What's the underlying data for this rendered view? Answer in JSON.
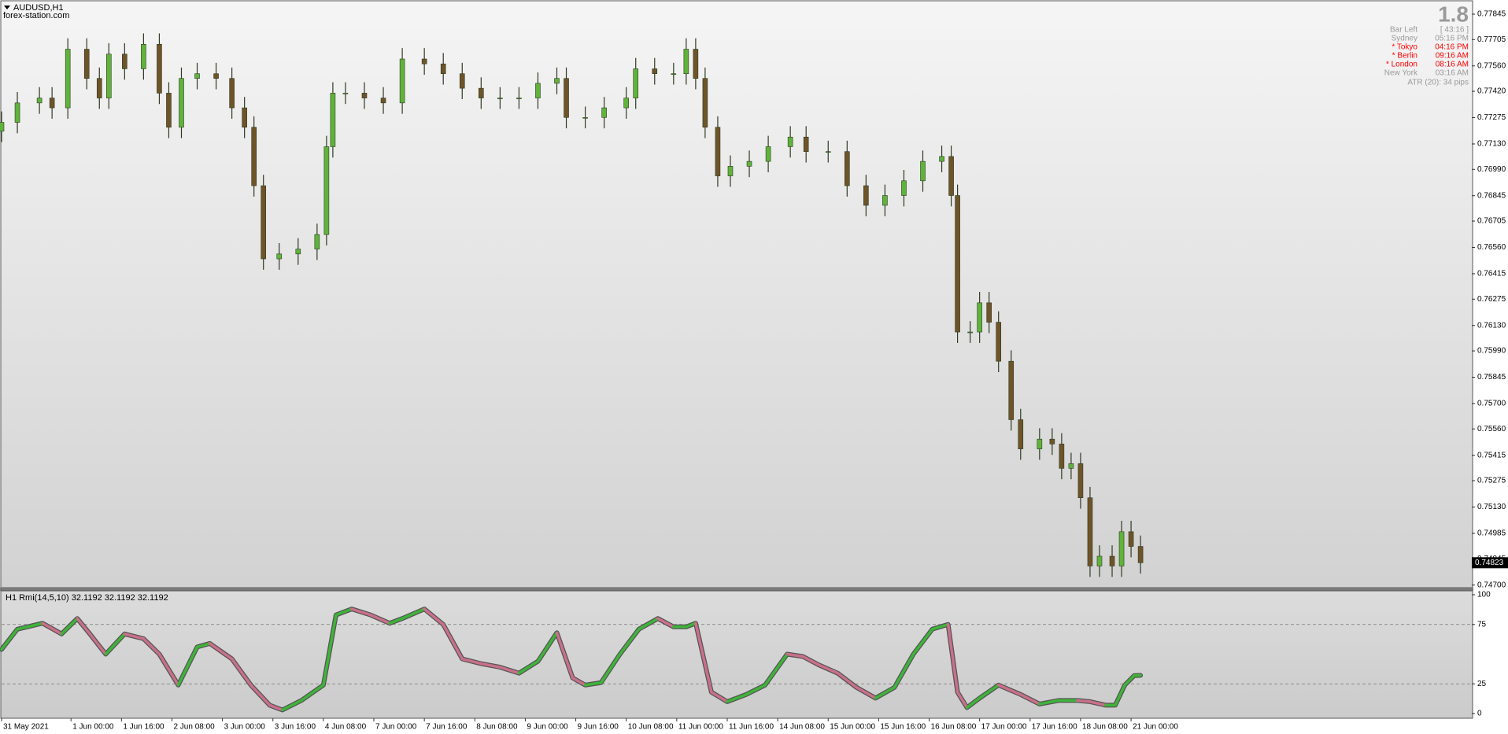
{
  "chart_data": [
    {
      "type": "candlestick",
      "title": "AUDUSD,H1",
      "subtitle": "forex-station.com",
      "x": [
        0,
        5,
        12,
        16,
        21,
        27,
        31,
        34,
        39,
        45,
        50,
        53,
        57,
        62,
        68,
        73,
        77,
        80,
        83,
        88,
        94,
        100,
        103,
        105,
        109,
        115,
        121,
        127,
        134,
        140,
        146,
        152,
        158,
        164,
        170,
        176,
        179,
        185,
        191,
        198,
        201,
        207,
        213,
        217,
        220,
        223,
        227,
        231,
        237,
        243,
        250,
        255,
        262,
        268,
        274,
        280,
        286,
        292,
        298,
        301,
        303,
        307,
        310,
        313,
        316,
        320,
        323,
        329,
        333,
        336,
        339,
        342,
        345,
        348,
        352,
        355,
        358,
        361
      ],
      "series": [
        {
          "open": [
            0.772,
            0.77249,
            0.77356,
            0.77383,
            0.77329,
            0.77652,
            0.77491,
            0.77383,
            0.77625,
            0.77544,
            0.77679,
            0.7741,
            0.77222,
            0.77491,
            0.77517,
            0.77491,
            0.77329,
            0.77222,
            0.769,
            0.76497,
            0.76524,
            0.76551,
            0.76631,
            0.77115,
            0.7741,
            0.7741,
            0.77383,
            0.77356,
            0.77598,
            0.77571,
            0.77517,
            0.77437,
            0.77383,
            0.77383,
            0.77383,
            0.77464,
            0.77491,
            0.77276,
            0.77276,
            0.77329,
            0.77383,
            0.77544,
            0.77517,
            0.77517,
            0.77652,
            0.77491,
            0.77222,
            0.76954,
            0.77007,
            0.77034,
            0.77115,
            0.77168,
            0.77088,
            0.77088,
            0.769,
            0.76792,
            0.76846,
            0.76927,
            0.77034,
            0.77061,
            0.76846,
            0.76094,
            0.76094,
            0.76255,
            0.76148,
            0.75933,
            0.75611,
            0.7545,
            0.75504,
            0.75477,
            0.75343,
            0.75369,
            0.75181,
            0.74805,
            0.74859,
            0.74805,
            0.74994,
            0.74913
          ],
          "high": [
            0.77309,
            0.77416,
            0.77443,
            0.77443,
            0.77712,
            0.77712,
            0.77551,
            0.77685,
            0.77685,
            0.77739,
            0.77739,
            0.7747,
            0.77551,
            0.77577,
            0.77577,
            0.77551,
            0.77389,
            0.77282,
            0.7696,
            0.76584,
            0.76611,
            0.76691,
            0.77175,
            0.7747,
            0.7747,
            0.7747,
            0.77443,
            0.77658,
            0.77658,
            0.77631,
            0.77577,
            0.77497,
            0.77443,
            0.77443,
            0.77524,
            0.77551,
            0.77551,
            0.77336,
            0.77389,
            0.77443,
            0.77604,
            0.77604,
            0.77577,
            0.77712,
            0.77712,
            0.77551,
            0.77282,
            0.77067,
            0.77094,
            0.77175,
            0.77228,
            0.77228,
            0.77148,
            0.77148,
            0.7696,
            0.76906,
            0.76987,
            0.77094,
            0.77121,
            0.77121,
            0.76906,
            0.76154,
            0.76315,
            0.76315,
            0.76208,
            0.75993,
            0.75671,
            0.75564,
            0.75564,
            0.75537,
            0.75429,
            0.75429,
            0.75241,
            0.74919,
            0.74919,
            0.75054,
            0.75054,
            0.74973
          ],
          "low": [
            0.7714,
            0.77189,
            0.77296,
            0.77269,
            0.77269,
            0.77431,
            0.77323,
            0.77323,
            0.77484,
            0.77484,
            0.7735,
            0.77162,
            0.77162,
            0.77431,
            0.77431,
            0.77269,
            0.77162,
            0.7684,
            0.76437,
            0.76437,
            0.76464,
            0.76491,
            0.76571,
            0.77055,
            0.7735,
            0.77323,
            0.77296,
            0.77296,
            0.77511,
            0.77457,
            0.77377,
            0.77323,
            0.77323,
            0.77323,
            0.77323,
            0.77404,
            0.77216,
            0.77216,
            0.77216,
            0.77269,
            0.77323,
            0.77457,
            0.77457,
            0.77457,
            0.77431,
            0.77162,
            0.76894,
            0.76894,
            0.76947,
            0.76974,
            0.77055,
            0.77028,
            0.77028,
            0.7684,
            0.76732,
            0.76732,
            0.76786,
            0.76867,
            0.76974,
            0.76786,
            0.76034,
            0.76034,
            0.76034,
            0.76088,
            0.75873,
            0.75551,
            0.7539,
            0.7539,
            0.75417,
            0.75283,
            0.75283,
            0.75121,
            0.74745,
            0.74745,
            0.74745,
            0.74745,
            0.74853,
            0.74763
          ],
          "close": [
            0.77249,
            0.77356,
            0.77383,
            0.77329,
            0.77652,
            0.77491,
            0.77383,
            0.77625,
            0.77544,
            0.77679,
            0.7741,
            0.77222,
            0.77491,
            0.77517,
            0.77491,
            0.77329,
            0.77222,
            0.769,
            0.76497,
            0.76524,
            0.76551,
            0.76631,
            0.77115,
            0.7741,
            0.7741,
            0.77383,
            0.77356,
            0.77598,
            0.77571,
            0.77517,
            0.77437,
            0.77383,
            0.77383,
            0.77383,
            0.77464,
            0.77491,
            0.77276,
            0.77276,
            0.77329,
            0.77383,
            0.77544,
            0.77517,
            0.77517,
            0.77652,
            0.77491,
            0.77222,
            0.76954,
            0.77007,
            0.77034,
            0.77115,
            0.77168,
            0.77088,
            0.77088,
            0.769,
            0.76792,
            0.76846,
            0.76927,
            0.77034,
            0.77061,
            0.76846,
            0.76094,
            0.76094,
            0.76255,
            0.76148,
            0.75933,
            0.75611,
            0.7545,
            0.75504,
            0.75477,
            0.75343,
            0.75369,
            0.75181,
            0.74805,
            0.74859,
            0.74805,
            0.74994,
            0.74913,
            0.74823
          ]
        }
      ],
      "up_color": "#5fb33a",
      "down_color": "#6e5428",
      "wick_color": "#2e3a22",
      "xlim": [
        0,
        466
      ],
      "ylim": [
        0.7469,
        0.7791
      ],
      "yticks": [
        0.77845,
        0.77705,
        {
          "value": 0.7756,
          "label": "0.77560"
        },
        {
          "value": 0.7742,
          "label": "0.77420"
        },
        0.77275,
        {
          "value": 0.7713,
          "label": "0.77130"
        },
        {
          "value": 0.7699,
          "label": "0.76990"
        },
        0.76845,
        0.76705,
        {
          "value": 0.7656,
          "label": "0.76560"
        },
        0.76415,
        0.76275,
        {
          "value": 0.7613,
          "label": "0.76130"
        },
        {
          "value": 0.7599,
          "label": "0.75990"
        },
        0.75845,
        {
          "value": 0.757,
          "label": "0.75700"
        },
        {
          "value": 0.7556,
          "label": "0.75560"
        },
        0.75415,
        0.75275,
        {
          "value": 0.7513,
          "label": "0.75130"
        },
        0.74985,
        0.74845,
        {
          "value": 0.747,
          "label": "0.74700"
        }
      ],
      "last_price": 0.74823,
      "info_panel": {
        "spread": 1.8,
        "rows": [
          {
            "label": "Bar Left",
            "value": "[ 43:16 ]",
            "color": "#9a9a9a"
          },
          {
            "label": "Sydney",
            "value": "05:16 PM",
            "color": "#9a9a9a"
          },
          {
            "label": "* Tokyo",
            "value": "04:16 PM",
            "color": "#ff0000"
          },
          {
            "label": "* Berlin",
            "value": "09:16 AM",
            "color": "#ff0000"
          },
          {
            "label": "* London",
            "value": "08:16 AM",
            "color": "#ff0000"
          },
          {
            "label": "New York",
            "value": "03:16 AM",
            "color": "#9a9a9a"
          }
        ],
        "atr": "ATR (20): 34 pips"
      }
    },
    {
      "type": "line",
      "title": "H1 Rmi(14,5,10) 32.1192 32.1192 32.1192",
      "x": [
        0,
        5,
        13,
        19,
        24,
        28,
        33,
        39,
        45,
        50,
        56,
        62,
        66,
        73,
        79,
        85,
        89,
        95,
        102,
        106,
        111,
        117,
        123,
        127,
        134,
        140,
        146,
        152,
        158,
        164,
        170,
        176,
        181,
        185,
        190,
        196,
        202,
        208,
        213,
        217,
        220,
        225,
        230,
        236,
        242,
        249,
        254,
        259,
        265,
        271,
        277,
        283,
        289,
        295,
        300,
        303,
        306,
        310,
        316,
        323,
        329,
        335,
        341,
        345,
        350,
        353,
        356,
        359,
        361
      ],
      "series": [
        {
          "values": [
            54,
            71,
            76,
            67,
            80,
            67,
            50,
            67,
            63,
            50,
            24,
            56,
            59,
            46,
            24,
            7,
            3,
            11,
            24,
            83,
            88,
            83,
            76,
            80,
            88,
            75,
            46,
            42,
            39,
            34,
            44,
            68,
            30,
            24,
            26,
            50,
            71,
            80,
            73,
            73,
            76,
            18,
            10,
            16,
            24,
            50,
            48,
            41,
            34,
            22,
            13,
            22,
            50,
            71,
            75,
            18,
            5,
            13,
            24,
            16,
            8,
            11,
            11,
            10,
            7,
            7,
            24,
            32,
            32.1192
          ],
          "up_color": "#3fb33a",
          "down_color": "#c9708a"
        }
      ],
      "xlim": [
        0,
        466
      ],
      "ylim": [
        0,
        100
      ],
      "yticks": [
        0,
        25,
        75,
        100
      ],
      "xticks": [
        {
          "value": 0,
          "label": "31 May 2021"
        },
        {
          "value": 22,
          "label": "1 Jun 00:00"
        },
        {
          "value": 38,
          "label": "1 Jun 16:00"
        },
        {
          "value": 54,
          "label": "2 Jun 08:00"
        },
        {
          "value": 70,
          "label": "3 Jun 00:00"
        },
        {
          "value": 86,
          "label": "3 Jun 16:00"
        },
        {
          "value": 102,
          "label": "4 Jun 08:00"
        },
        {
          "value": 118,
          "label": "7 Jun 00:00"
        },
        {
          "value": 134,
          "label": "7 Jun 16:00"
        },
        {
          "value": 150,
          "label": "8 Jun 08:00"
        },
        {
          "value": 166,
          "label": "9 Jun 00:00"
        },
        {
          "value": 182,
          "label": "9 Jun 16:00"
        },
        {
          "value": 198,
          "label": "10 Jun 08:00"
        },
        {
          "value": 214,
          "label": "11 Jun 00:00"
        },
        {
          "value": 230,
          "label": "11 Jun 16:00"
        },
        {
          "value": 246,
          "label": "14 Jun 08:00"
        },
        {
          "value": 262,
          "label": "15 Jun 00:00"
        },
        {
          "value": 278,
          "label": "15 Jun 16:00"
        },
        {
          "value": 294,
          "label": "16 Jun 08:00"
        },
        {
          "value": 310,
          "label": "17 Jun 00:00"
        },
        {
          "value": 326,
          "label": "17 Jun 16:00"
        },
        {
          "value": 342,
          "label": "18 Jun 08:00"
        },
        {
          "value": 358,
          "label": "21 Jun 00:00"
        }
      ]
    }
  ]
}
